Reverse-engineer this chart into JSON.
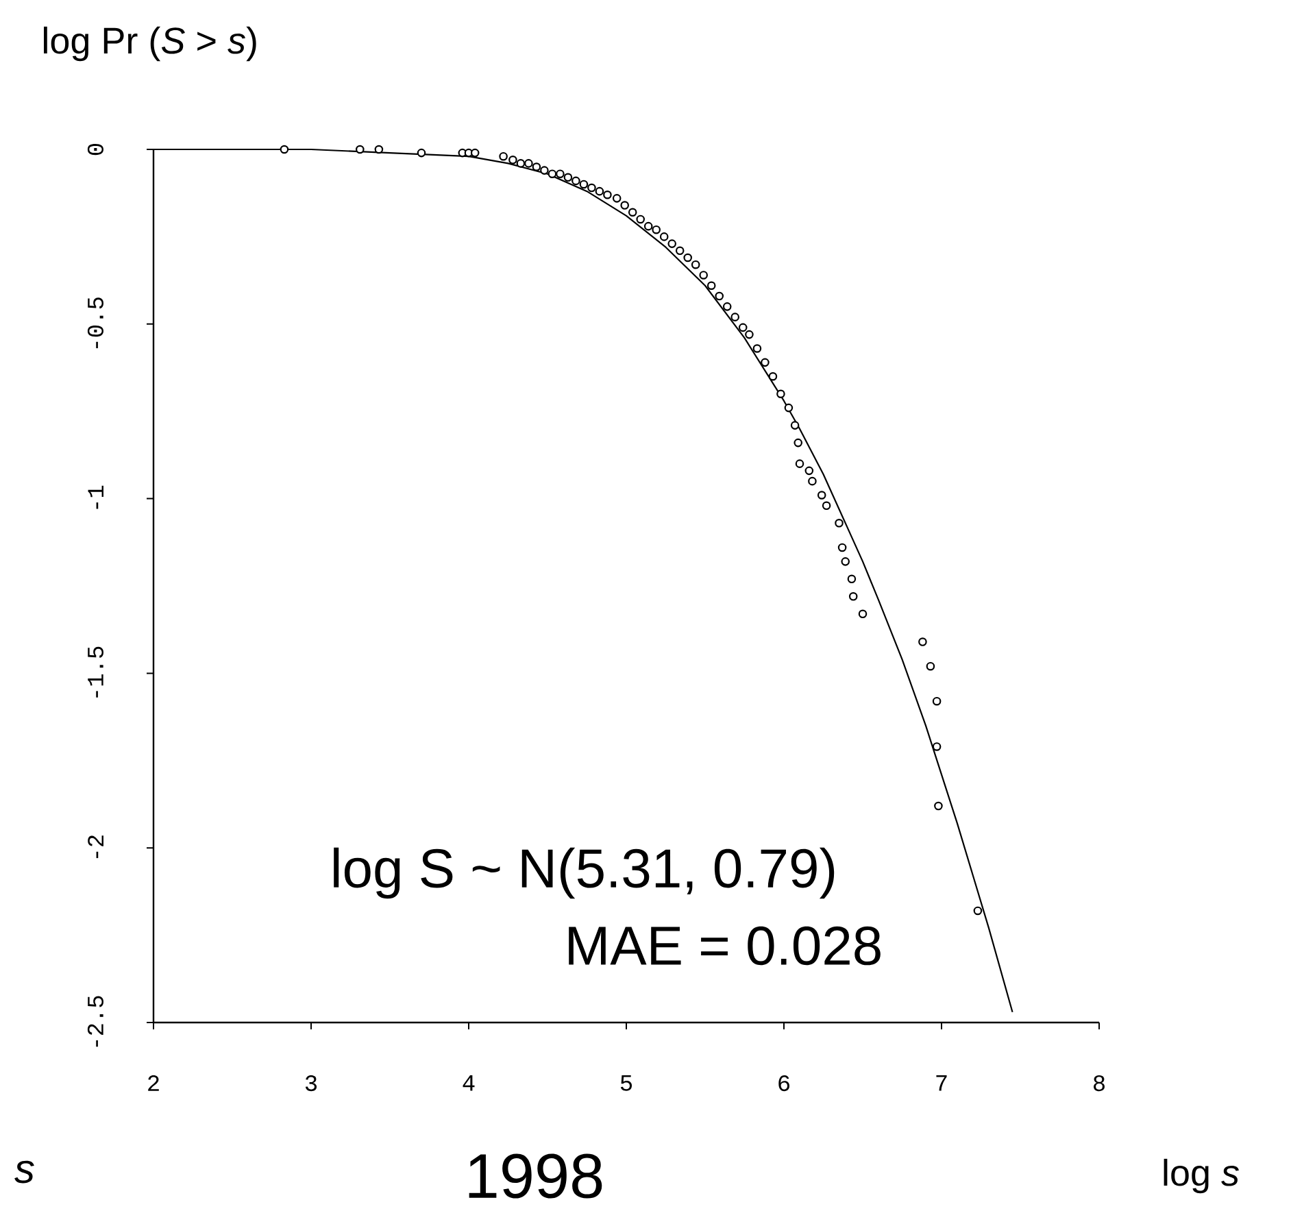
{
  "chart_data": {
    "type": "scatter",
    "title": "1998",
    "xlabel": "log *s*",
    "ylabel": "log Pr (*S* > *s*)",
    "annotations": [
      "log S ~ N(5.31, 0.79)",
      "MAE = 0.028",
      "s"
    ],
    "xlim": [
      2,
      8
    ],
    "ylim": [
      -2.5,
      0
    ],
    "xticks": [
      2,
      3,
      4,
      5,
      6,
      7,
      8
    ],
    "yticks": [
      0,
      -0.5,
      -1,
      -1.5,
      -2,
      -2.5
    ],
    "marker": "circle",
    "grid": false,
    "series": [
      {
        "color": "#000000",
        "x": [
          2.83,
          3.31,
          3.43,
          3.7,
          3.96,
          4.0,
          4.04,
          4.22,
          4.28,
          4.33,
          4.38,
          4.43,
          4.48,
          4.53,
          4.58,
          4.63,
          4.68,
          4.73,
          4.78,
          4.83,
          4.88,
          4.94,
          4.99,
          5.04,
          5.09,
          5.14,
          5.19,
          5.24,
          5.29,
          5.34,
          5.39,
          5.44,
          5.49,
          5.54,
          5.59,
          5.64,
          5.69,
          5.74,
          5.78,
          5.83,
          5.88,
          5.93,
          5.98,
          6.03,
          6.07,
          6.09,
          6.1,
          6.16,
          6.18,
          6.24,
          6.27,
          6.35,
          6.37,
          6.39,
          6.43,
          6.44,
          6.5,
          6.88,
          6.93,
          6.97,
          6.97,
          6.98,
          7.23
        ],
        "values": [
          0,
          0,
          0,
          -0.01,
          -0.01,
          -0.01,
          -0.01,
          -0.02,
          -0.03,
          -0.04,
          -0.04,
          -0.05,
          -0.06,
          -0.07,
          -0.07,
          -0.08,
          -0.09,
          -0.1,
          -0.11,
          -0.12,
          -0.13,
          -0.14,
          -0.16,
          -0.18,
          -0.2,
          -0.22,
          -0.23,
          -0.25,
          -0.27,
          -0.29,
          -0.31,
          -0.33,
          -0.36,
          -0.39,
          -0.42,
          -0.45,
          -0.48,
          -0.51,
          -0.53,
          -0.57,
          -0.61,
          -0.65,
          -0.7,
          -0.74,
          -0.79,
          -0.84,
          -0.9,
          -0.92,
          -0.95,
          -0.99,
          -1.02,
          -1.07,
          -1.14,
          -1.18,
          -1.23,
          -1.28,
          -1.33,
          -1.41,
          -1.48,
          -1.58,
          -1.71,
          -1.88,
          -2.18
        ]
      },
      {
        "type": "line",
        "color": "#000000",
        "marker": "none",
        "x": [
          2,
          3,
          3.5,
          4,
          4.25,
          4.5,
          4.75,
          5,
          5.25,
          5.5,
          5.75,
          6,
          6.1,
          6.25,
          6.4,
          6.5,
          6.6,
          6.75,
          6.9,
          7,
          7.1,
          7.2,
          7.3,
          7.45
        ],
        "values": [
          0,
          0,
          -0.01,
          -0.02,
          -0.04,
          -0.07,
          -0.12,
          -0.19,
          -0.28,
          -0.39,
          -0.54,
          -0.72,
          -0.8,
          -0.93,
          -1.08,
          -1.18,
          -1.29,
          -1.46,
          -1.65,
          -1.79,
          -1.93,
          -2.08,
          -2.23,
          -2.47
        ]
      }
    ]
  }
}
